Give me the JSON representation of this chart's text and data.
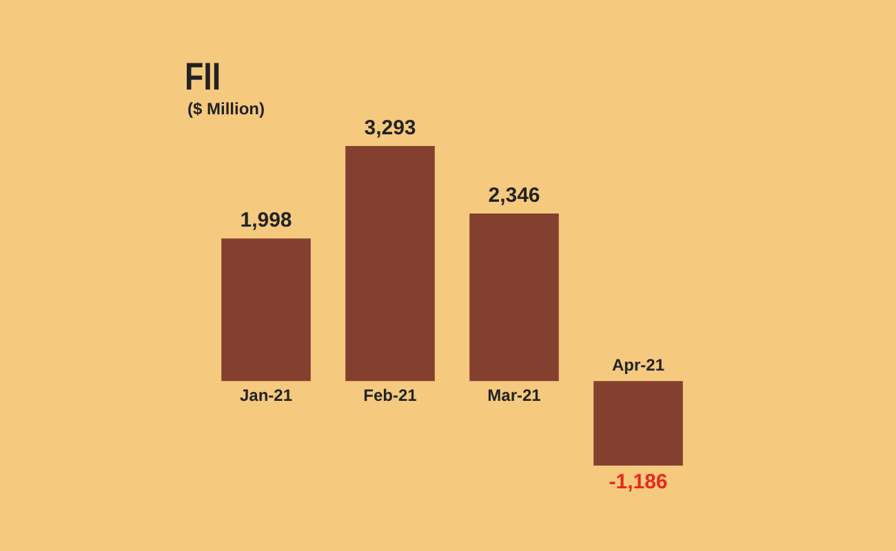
{
  "chart_data": {
    "type": "bar",
    "title": "FII",
    "subtitle": "($ Million)",
    "categories": [
      "Jan-21",
      "Feb-21",
      "Mar-21",
      "Apr-21"
    ],
    "values": [
      1998,
      3293,
      2346,
      -1186
    ],
    "color": "#84402f",
    "value_labels": [
      "1,998",
      "3,293",
      "2,346",
      "-1,186"
    ]
  }
}
